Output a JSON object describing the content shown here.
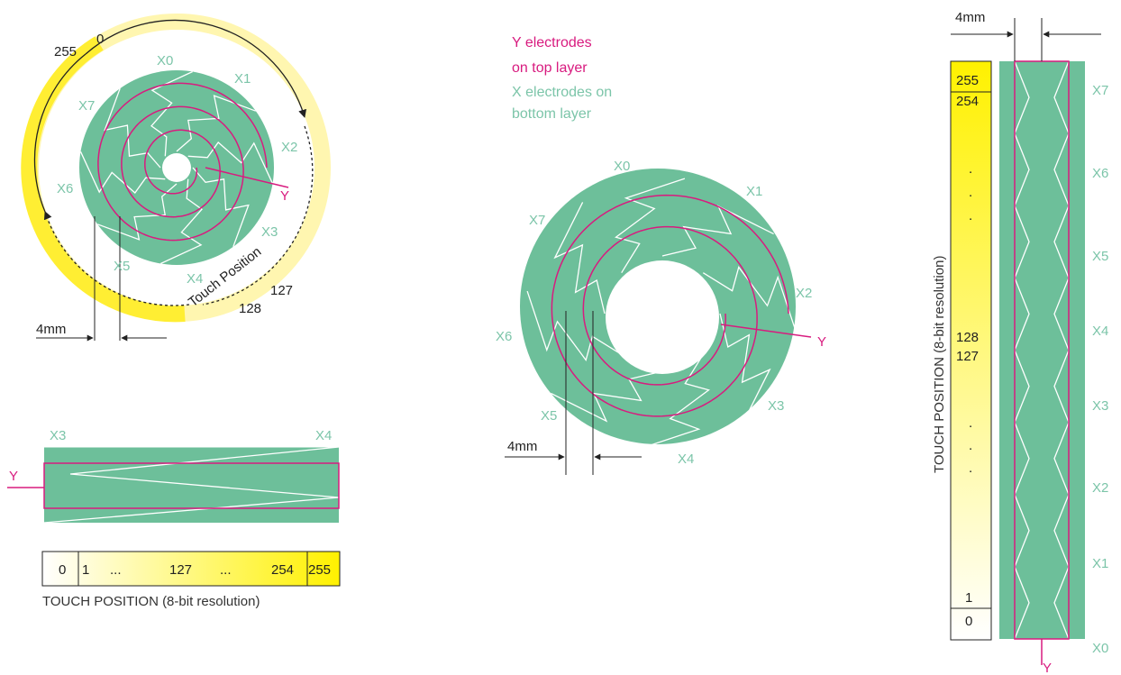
{
  "colors": {
    "electrode_fill": "#6dbf9a",
    "x_label": "#7cc5a9",
    "y_electrode": "#d81b7f",
    "touch_band": "#ffee00",
    "text": "#222222",
    "zigzag": "#ffffff"
  },
  "legend": {
    "y_line1": "Y electrodes",
    "y_line2": "on top layer",
    "x_line1": "X electrodes on",
    "x_line2": "bottom layer"
  },
  "wheel": {
    "x_labels": [
      "X0",
      "X1",
      "X2",
      "X3",
      "X4",
      "X5",
      "X6",
      "X7"
    ],
    "y_label": "Y",
    "pos_start": "0",
    "pos_end": "255",
    "pos_mid_a": "127",
    "pos_mid_b": "128",
    "touch_position": "Touch Position",
    "dimension": "4mm"
  },
  "ring": {
    "x_labels": [
      "X0",
      "X1",
      "X2",
      "X3",
      "X4",
      "X5",
      "X6",
      "X7"
    ],
    "y_label": "Y",
    "dimension": "4mm"
  },
  "hslider": {
    "x_left": "X3",
    "x_right": "X4",
    "y_label": "Y",
    "scale": [
      "0",
      "1",
      "...",
      "127",
      "...",
      "254",
      "255"
    ],
    "caption": "TOUCH POSITION (8-bit resolution)"
  },
  "vslider": {
    "dimension": "4mm",
    "x_labels": [
      "X7",
      "X6",
      "X5",
      "X4",
      "X3",
      "X2",
      "X1",
      "X0"
    ],
    "y_label": "Y",
    "scale_top": [
      "255",
      "254"
    ],
    "scale_mid": [
      "128",
      "127"
    ],
    "scale_bottom": [
      "1",
      "0"
    ],
    "dots": ".",
    "caption": "TOUCH POSITION (8-bit resolution)"
  }
}
